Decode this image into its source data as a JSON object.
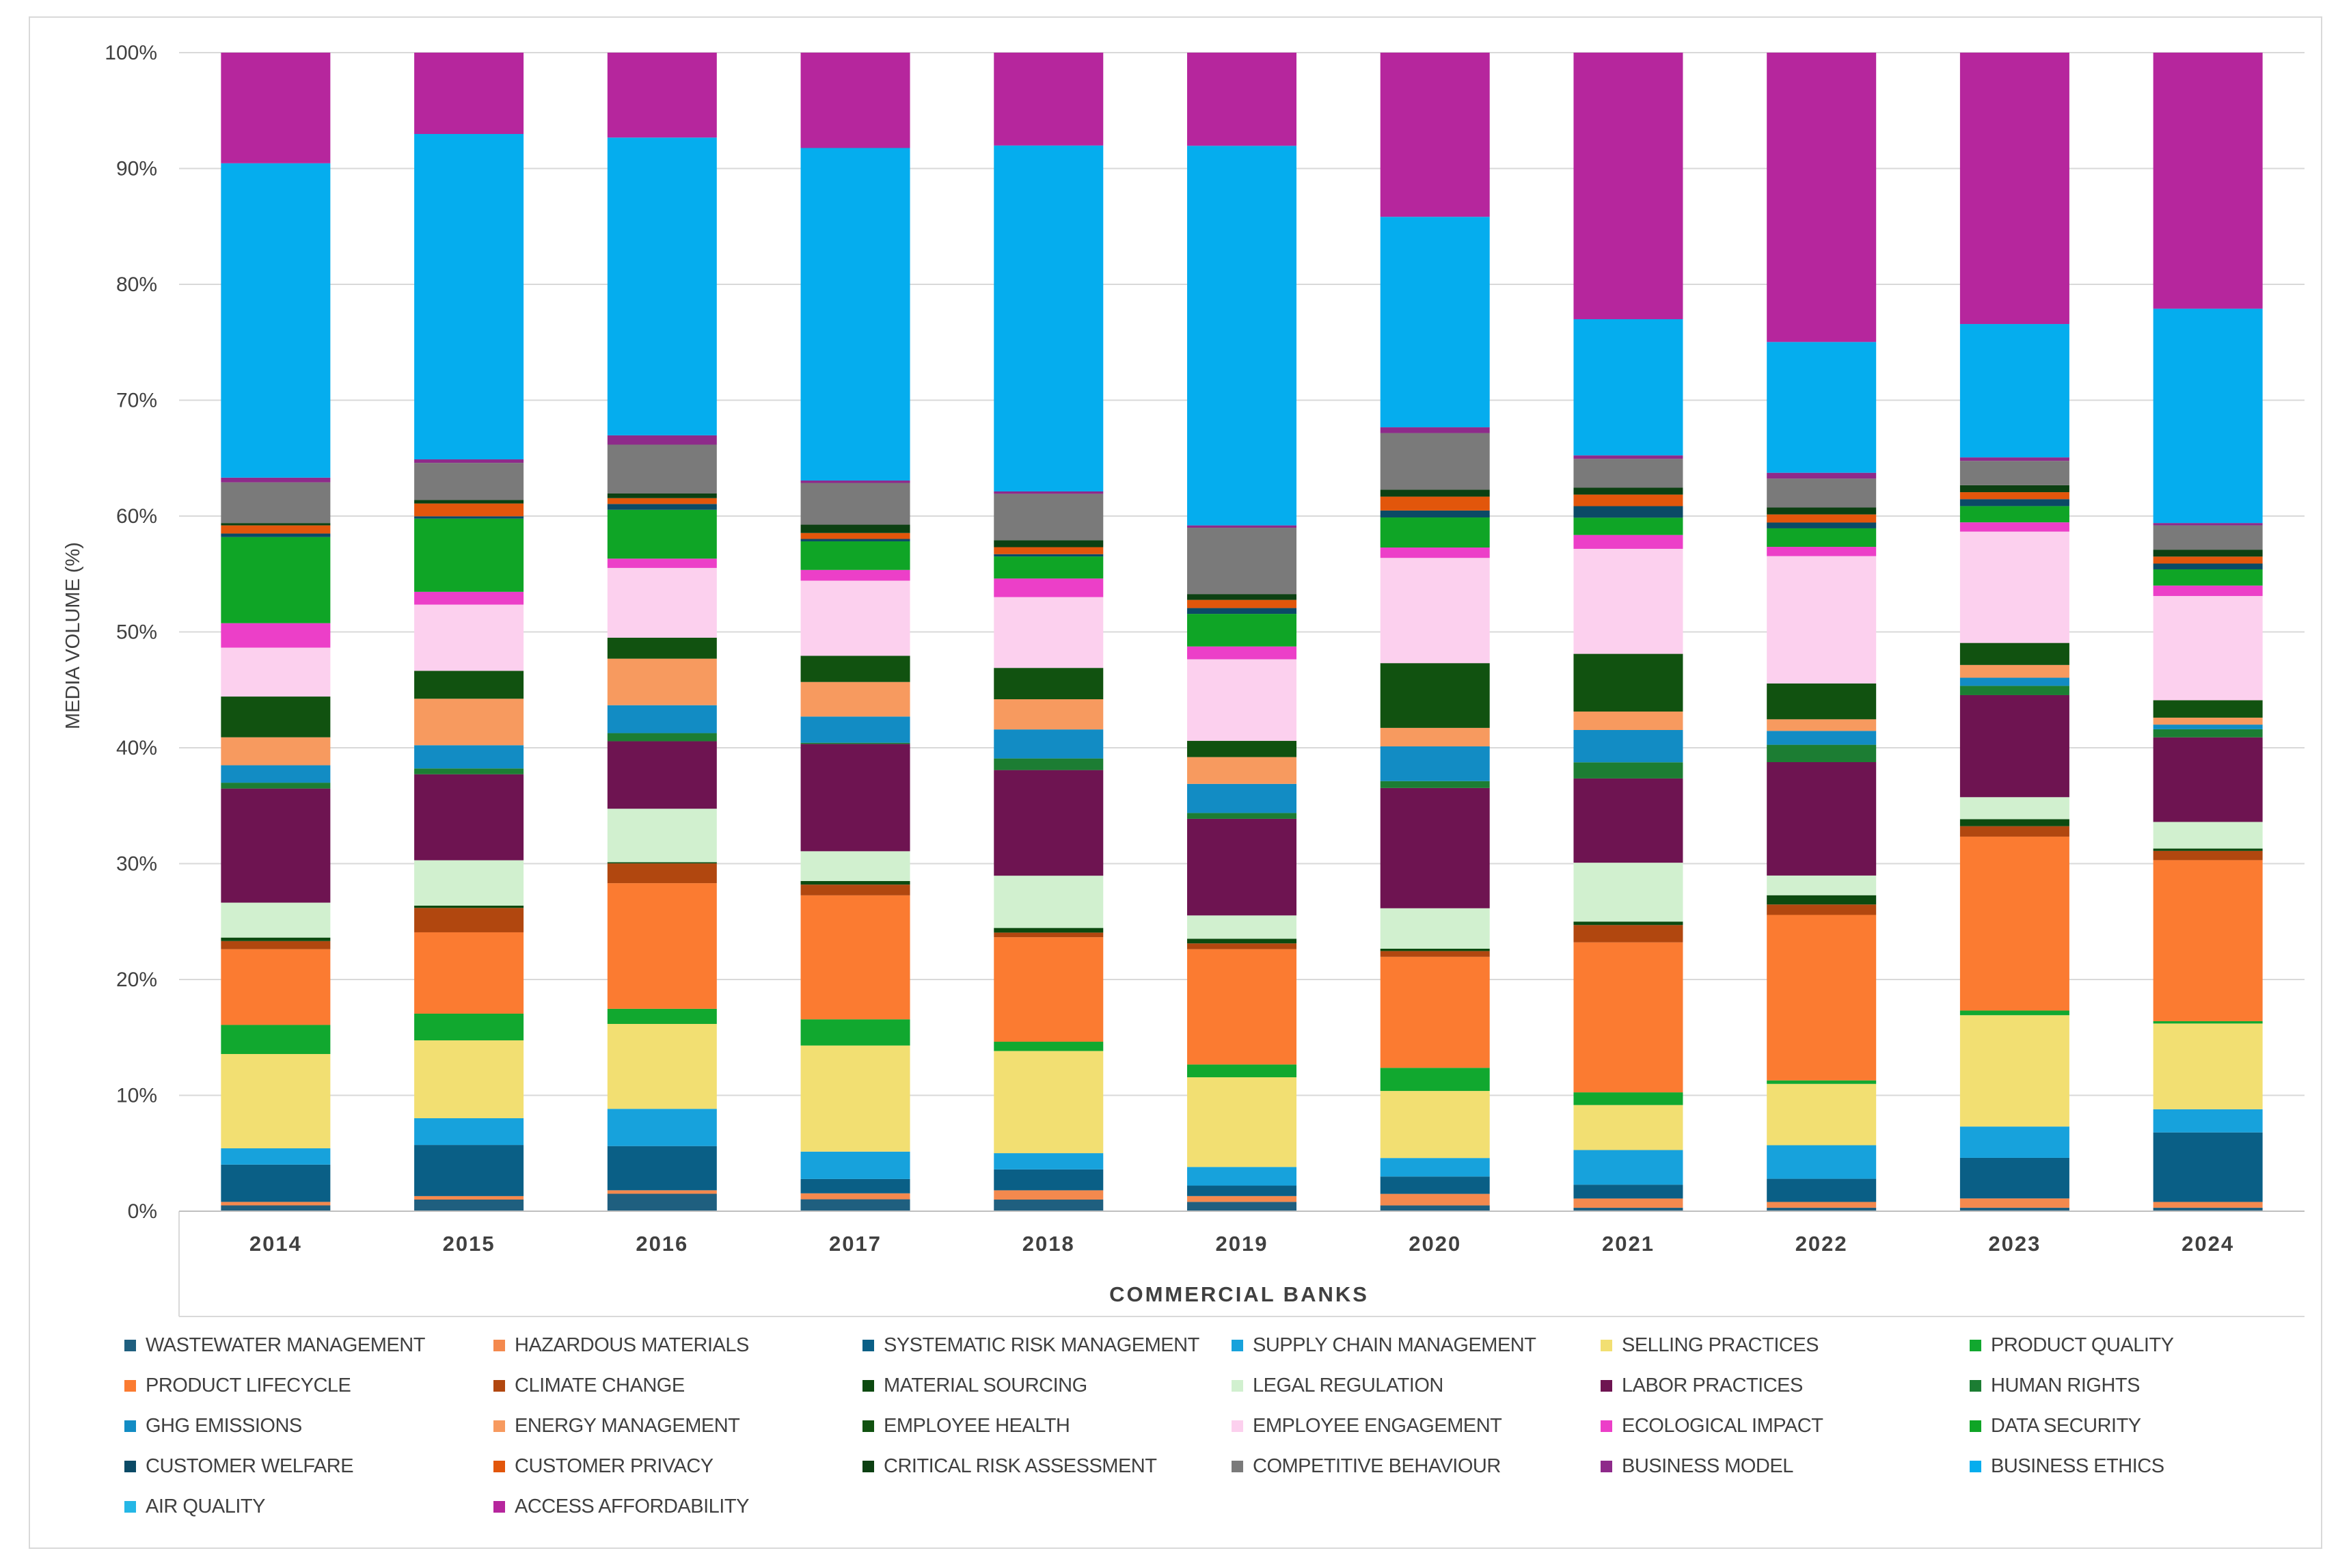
{
  "chart_data": {
    "type": "bar",
    "stacked": true,
    "percent": true,
    "title": "",
    "xlabel": "COMMERCIAL BANKS",
    "ylabel": "MEDIA VOLUME (%)",
    "ylim": [
      0,
      100
    ],
    "y_ticks": [
      "0%",
      "10%",
      "20%",
      "30%",
      "40%",
      "50%",
      "60%",
      "70%",
      "80%",
      "90%",
      "100%"
    ],
    "categories": [
      "2014",
      "2015",
      "2016",
      "2017",
      "2018",
      "2019",
      "2020",
      "2021",
      "2022",
      "2023",
      "2024"
    ],
    "series": [
      {
        "name": "WASTEWATER MANAGEMENT",
        "color": "#1f5f7f",
        "values": [
          0.5,
          1.0,
          1.5,
          1.0,
          1.0,
          0.8,
          0.5,
          0.3,
          0.3,
          0.3,
          0.3
        ]
      },
      {
        "name": "HAZARDOUS MATERIALS",
        "color": "#f4894e",
        "values": [
          0.3,
          0.3,
          0.3,
          0.5,
          0.8,
          0.5,
          1.0,
          0.8,
          0.5,
          0.8,
          0.5
        ]
      },
      {
        "name": "SYSTEMATIC RISK MANAGEMENT",
        "color": "#0a5f86",
        "values": [
          3.2,
          4.4,
          3.8,
          1.2,
          1.8,
          0.9,
          1.5,
          1.2,
          2.0,
          3.5,
          6.0
        ]
      },
      {
        "name": "SUPPLY CHAIN MANAGEMENT",
        "color": "#17a2dc",
        "values": [
          1.4,
          2.3,
          3.2,
          2.3,
          1.4,
          1.6,
          1.6,
          3.0,
          2.9,
          2.7,
          2.0
        ]
      },
      {
        "name": "SELLING PRACTICES",
        "color": "#f2df72",
        "values": [
          8.1,
          6.7,
          7.3,
          8.9,
          8.8,
          7.7,
          5.8,
          3.9,
          5.3,
          9.6,
          7.4
        ]
      },
      {
        "name": "PRODUCT QUALITY",
        "color": "#11a82f",
        "values": [
          2.5,
          2.3,
          1.3,
          2.2,
          0.8,
          1.1,
          2.0,
          1.1,
          0.3,
          0.4,
          0.2
        ]
      },
      {
        "name": "PRODUCT LIFECYCLE",
        "color": "#fb7b31",
        "values": [
          6.5,
          7.0,
          10.8,
          10.4,
          9.0,
          9.9,
          9.6,
          13.0,
          14.3,
          15.0,
          13.9
        ]
      },
      {
        "name": "CLIMATE CHANGE",
        "color": "#b1470f",
        "values": [
          0.7,
          2.1,
          1.7,
          0.9,
          0.4,
          0.5,
          0.5,
          1.5,
          0.9,
          0.9,
          0.8
        ]
      },
      {
        "name": "MATERIAL SOURCING",
        "color": "#0c4a10",
        "values": [
          0.3,
          0.2,
          0.1,
          0.3,
          0.4,
          0.4,
          0.2,
          0.3,
          0.8,
          0.6,
          0.2
        ]
      },
      {
        "name": "LEGAL REGULATION",
        "color": "#d1f0cf",
        "values": [
          3.0,
          3.9,
          4.6,
          2.5,
          4.5,
          2.0,
          3.5,
          5.1,
          1.7,
          1.9,
          2.3
        ]
      },
      {
        "name": "LABOR PRACTICES",
        "color": "#6e1451",
        "values": [
          9.8,
          7.4,
          5.8,
          9.0,
          9.1,
          8.3,
          10.4,
          7.3,
          9.8,
          8.8,
          7.3
        ]
      },
      {
        "name": "HUMAN RIGHTS",
        "color": "#1c7d33",
        "values": [
          0.5,
          0.5,
          0.7,
          0.1,
          1.0,
          0.5,
          0.6,
          1.4,
          1.5,
          0.8,
          0.7
        ]
      },
      {
        "name": "GHG EMISSIONS",
        "color": "#128cc4",
        "values": [
          1.5,
          2.0,
          2.4,
          2.2,
          2.5,
          2.5,
          3.0,
          2.8,
          1.2,
          0.7,
          0.4
        ]
      },
      {
        "name": "ENERGY MANAGEMENT",
        "color": "#f79a5f",
        "values": [
          2.4,
          4.0,
          4.0,
          2.9,
          2.6,
          2.3,
          1.6,
          1.6,
          1.0,
          1.1,
          0.6
        ]
      },
      {
        "name": "EMPLOYEE HEALTH",
        "color": "#115210",
        "values": [
          3.5,
          2.4,
          1.8,
          2.2,
          2.7,
          1.4,
          5.6,
          5.0,
          3.1,
          1.9,
          1.5
        ]
      },
      {
        "name": "EMPLOYEE ENGAGEMENT",
        "color": "#fcd0ee",
        "values": [
          4.2,
          5.7,
          6.0,
          6.3,
          6.1,
          7.0,
          9.1,
          9.1,
          11.0,
          9.6,
          9.0
        ]
      },
      {
        "name": "ECOLOGICAL IMPACT",
        "color": "#ec3fc8",
        "values": [
          2.1,
          1.1,
          0.8,
          0.9,
          1.6,
          1.1,
          0.9,
          1.2,
          0.8,
          0.8,
          0.9
        ]
      },
      {
        "name": "DATA SECURITY",
        "color": "#0fa526",
        "values": [
          7.4,
          6.3,
          4.2,
          2.4,
          1.9,
          2.8,
          2.6,
          1.5,
          1.6,
          1.4,
          1.4
        ]
      },
      {
        "name": "CUSTOMER WELFARE",
        "color": "#0b4a66",
        "values": [
          0.3,
          0.2,
          0.5,
          0.2,
          0.2,
          0.5,
          0.6,
          1.0,
          0.5,
          0.6,
          0.5
        ]
      },
      {
        "name": "CUSTOMER PRIVACY",
        "color": "#e2560b",
        "values": [
          0.7,
          1.1,
          0.5,
          0.5,
          0.6,
          0.7,
          1.2,
          1.0,
          0.7,
          0.6,
          0.6
        ]
      },
      {
        "name": "CRITICAL RISK ASSESSMENT",
        "color": "#0c4012",
        "values": [
          0.2,
          0.3,
          0.4,
          0.7,
          0.6,
          0.5,
          0.6,
          0.6,
          0.6,
          0.6,
          0.6
        ]
      },
      {
        "name": "COMPETITIVE BEHAVIOUR",
        "color": "#7a7a7a",
        "values": [
          3.5,
          3.2,
          4.2,
          3.5,
          4.0,
          5.7,
          4.9,
          2.5,
          2.5,
          2.1,
          2.1
        ]
      },
      {
        "name": "BUSINESS MODEL",
        "color": "#8e2a8a",
        "values": [
          0.4,
          0.3,
          0.8,
          0.2,
          0.2,
          0.2,
          0.5,
          0.3,
          0.5,
          0.3,
          0.2
        ]
      },
      {
        "name": "BUSINESS ETHICS",
        "color": "#05adee",
        "values": [
          27.0,
          28.0,
          25.6,
          27.9,
          29.8,
          32.6,
          18.2,
          11.8,
          11.3,
          11.5,
          18.5
        ]
      },
      {
        "name": "AIR QUALITY",
        "color": "#25b7e6",
        "values": [
          0,
          0,
          0,
          0,
          0,
          0,
          0,
          0,
          0,
          0,
          0
        ]
      },
      {
        "name": "ACCESS AFFORDABILITY",
        "color": "#b6269d",
        "values": [
          9.5,
          7.0,
          7.3,
          8.0,
          8.0,
          8.0,
          14.2,
          23.1,
          25.0,
          23.4,
          22.1
        ]
      }
    ]
  }
}
